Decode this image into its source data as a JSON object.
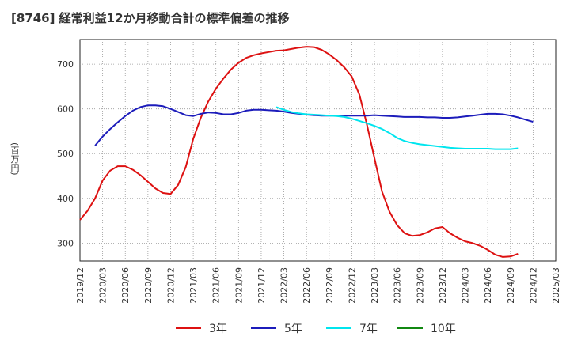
{
  "chart_data": {
    "type": "line",
    "title": "[8746]  経常利益12か月移動合計の標準偏差の推移",
    "ylabel": "(百万円)",
    "xlabel": "",
    "ylim": [
      260,
      755
    ],
    "yticks": [
      300,
      400,
      500,
      600,
      700
    ],
    "xticks": [
      "2019/12",
      "2020/03",
      "2020/06",
      "2020/09",
      "2020/12",
      "2021/03",
      "2021/06",
      "2021/09",
      "2021/12",
      "2022/03",
      "2022/06",
      "2022/09",
      "2022/12",
      "2023/03",
      "2023/06",
      "2023/09",
      "2023/12",
      "2024/03",
      "2024/06",
      "2024/09",
      "2024/12",
      "2025/03"
    ],
    "grid": true,
    "legend_placement": "bottom",
    "series": [
      {
        "name": "3年",
        "color": "#dd1111",
        "start": "2019/12",
        "values": [
          352,
          372,
          400,
          440,
          462,
          472,
          472,
          464,
          452,
          437,
          422,
          412,
          410,
          430,
          470,
          533,
          580,
          617,
          645,
          668,
          688,
          703,
          714,
          720,
          724,
          727,
          730,
          731,
          734,
          737,
          739,
          738,
          732,
          722,
          709,
          693,
          672,
          632,
          565,
          490,
          415,
          370,
          340,
          322,
          316,
          318,
          324,
          333,
          336,
          322,
          312,
          304,
          300,
          294,
          285,
          274,
          269,
          270,
          276
        ]
      },
      {
        "name": "5年",
        "color": "#1c1cbb",
        "start": "2020/02",
        "values": [
          518,
          538,
          555,
          570,
          584,
          596,
          604,
          608,
          608,
          606,
          600,
          593,
          586,
          584,
          589,
          592,
          591,
          588,
          588,
          591,
          596,
          598,
          598,
          597,
          596,
          594,
          591,
          589,
          587,
          586,
          585,
          585,
          585,
          585,
          585,
          585,
          585,
          586,
          585,
          584,
          583,
          582,
          582,
          582,
          581,
          581,
          580,
          580,
          581,
          583,
          585,
          587,
          589,
          589,
          588,
          585,
          581,
          576,
          571
        ]
      },
      {
        "name": "7年",
        "color": "#00e5ee",
        "start": "2022/02",
        "values": [
          604,
          598,
          593,
          590,
          588,
          587,
          586,
          585,
          584,
          582,
          578,
          573,
          568,
          562,
          555,
          546,
          535,
          528,
          524,
          521,
          519,
          517,
          515,
          513,
          512,
          511,
          511,
          511,
          511,
          510,
          510,
          510,
          512
        ]
      },
      {
        "name": "10年",
        "color": "#118811",
        "start": "2024/12",
        "values": []
      }
    ]
  }
}
